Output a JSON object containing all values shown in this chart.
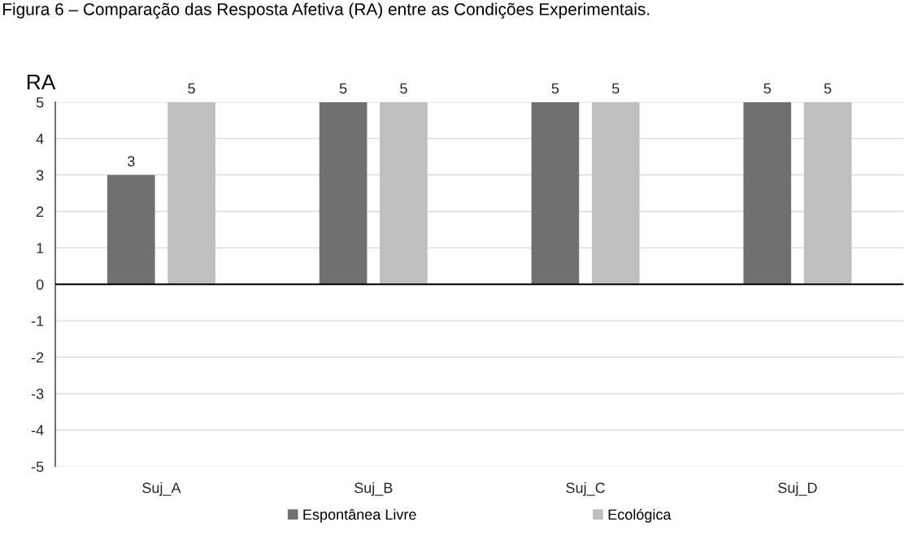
{
  "chart_data": {
    "type": "bar",
    "title": "Figura 6 – Comparação das Resposta Afetiva (RA) entre as Condições Experimentais.",
    "ylabel": "RA",
    "categories": [
      "Suj_A",
      "Suj_B",
      "Suj_C",
      "Suj_D"
    ],
    "series": [
      {
        "name": "Espontânea Livre",
        "color": "#707070",
        "values": [
          3,
          5,
          5,
          5
        ]
      },
      {
        "name": "Ecológica",
        "color": "#bfbfbf",
        "values": [
          5,
          5,
          5,
          5
        ]
      }
    ],
    "ylim": [
      -5,
      5
    ],
    "yticks": [
      -5,
      -4,
      -3,
      -2,
      -1,
      0,
      1,
      2,
      3,
      4,
      5
    ],
    "grid": "y",
    "legend": "bottom",
    "data_labels": true
  }
}
